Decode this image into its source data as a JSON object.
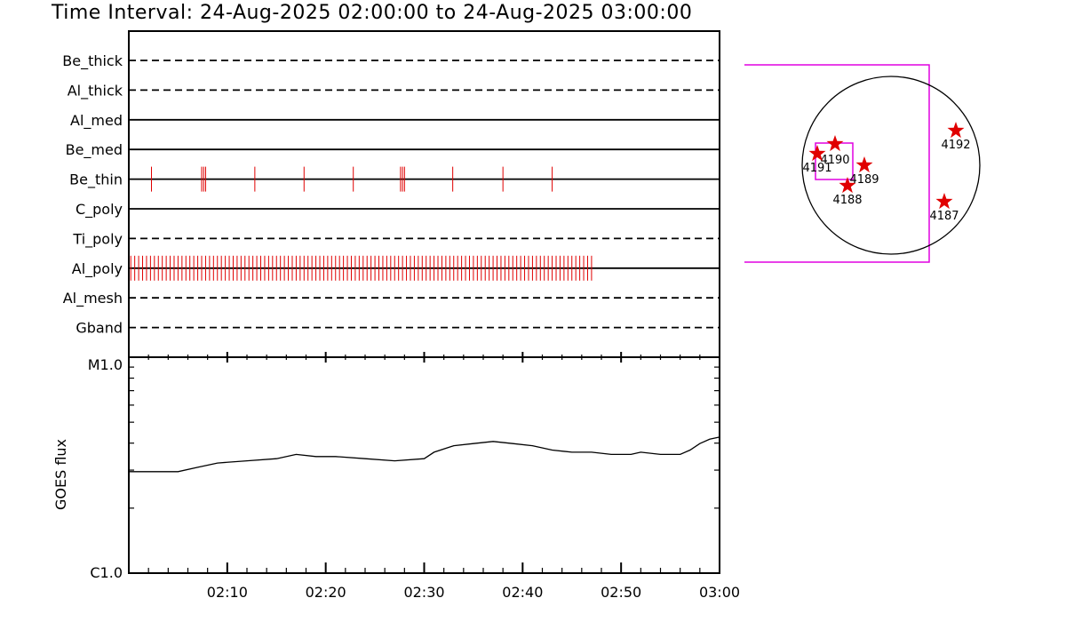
{
  "title": "Time Interval: 24-Aug-2025 02:00:00 to 24-Aug-2025 03:00:00",
  "colors": {
    "event": "#e00000",
    "box": "#e000e0",
    "axis": "#000000"
  },
  "chart_data": [
    {
      "type": "timeline",
      "name": "Filter/instrument observation timeline",
      "x_range": [
        "02:00",
        "03:00"
      ],
      "rows": [
        {
          "label": "Be_thick",
          "style": "dashed",
          "events": []
        },
        {
          "label": "Al_thick",
          "style": "dashed",
          "events": []
        },
        {
          "label": "Al_med",
          "style": "solid",
          "events": []
        },
        {
          "label": "Be_med",
          "style": "solid",
          "events": []
        },
        {
          "label": "Be_thin",
          "style": "solid",
          "events": [
            2.3,
            7.4,
            7.6,
            7.8,
            12.8,
            17.8,
            22.8,
            27.6,
            27.8,
            28.0,
            32.9,
            38.0,
            43.0
          ]
        },
        {
          "label": "C_poly",
          "style": "solid",
          "events": []
        },
        {
          "label": "Ti_poly",
          "style": "dashed",
          "events": []
        },
        {
          "label": "Al_poly",
          "style": "solid",
          "events": "dense",
          "event_start": 0.2,
          "event_end": 47.3,
          "event_step": 0.4
        },
        {
          "label": "Al_mesh",
          "style": "dashed",
          "events": []
        },
        {
          "label": "Gband",
          "style": "dashed",
          "events": []
        }
      ]
    },
    {
      "type": "line",
      "name": "GOES flux",
      "ylabel": "GOES flux",
      "ylog": true,
      "ytick_labels": [
        "C1.0",
        "M1.0"
      ],
      "xtick_labels": [
        "02:10",
        "02:20",
        "02:30",
        "02:40",
        "02:50",
        "03:00"
      ],
      "x_minutes": [
        0,
        2,
        5,
        7,
        9,
        12,
        15,
        17,
        19,
        21,
        24,
        27,
        30,
        31,
        33,
        35,
        37,
        39,
        41,
        43,
        45,
        47,
        49,
        51,
        52,
        54,
        56,
        57,
        58,
        59,
        60
      ],
      "y_values_log": [
        -5.53,
        -5.53,
        -5.53,
        -5.51,
        -5.49,
        -5.48,
        -5.47,
        -5.45,
        -5.46,
        -5.46,
        -5.47,
        -5.48,
        -5.47,
        -5.44,
        -5.41,
        -5.4,
        -5.39,
        -5.4,
        -5.41,
        -5.43,
        -5.44,
        -5.44,
        -5.45,
        -5.45,
        -5.44,
        -5.45,
        -5.45,
        -5.43,
        -5.4,
        -5.38,
        -5.37
      ]
    },
    {
      "type": "scatter",
      "name": "Solar disk active regions",
      "points": [
        {
          "label": "4187",
          "x": 0.6,
          "y": -0.41
        },
        {
          "label": "4188",
          "x": -0.49,
          "y": -0.23
        },
        {
          "label": "4189",
          "x": -0.3,
          "y": 0.0
        },
        {
          "label": "4190",
          "x": -0.63,
          "y": 0.24
        },
        {
          "label": "4191",
          "x": -0.83,
          "y": 0.13
        },
        {
          "label": "4192",
          "x": 0.73,
          "y": 0.39
        }
      ]
    }
  ]
}
